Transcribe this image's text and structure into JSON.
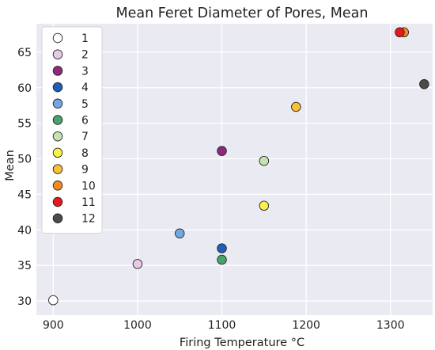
{
  "chart_data": {
    "type": "scatter",
    "title": "Mean Feret Diameter of Pores, Mean",
    "xlabel": "Firing Temperature °C",
    "ylabel": "Mean",
    "xlim": [
      880,
      1350
    ],
    "ylim": [
      28,
      69
    ],
    "xticks": [
      "900",
      "1000",
      "1100",
      "1200",
      "1300"
    ],
    "yticks": [
      "30",
      "35",
      "40",
      "45",
      "50",
      "55",
      "60",
      "65"
    ],
    "xtick_values": [
      900,
      1000,
      1100,
      1200,
      1300
    ],
    "ytick_values": [
      30,
      35,
      40,
      45,
      50,
      55,
      60,
      65
    ],
    "grid": true,
    "legend_position": "top-left",
    "series": [
      {
        "name": "1",
        "color": "#ffffff",
        "x": 900,
        "y": 30.1
      },
      {
        "name": "2",
        "color": "#e8c9e6",
        "x": 1000,
        "y": 35.2
      },
      {
        "name": "3",
        "color": "#8e2a7d",
        "x": 1100,
        "y": 51.1
      },
      {
        "name": "4",
        "color": "#1f5fb8",
        "x": 1100,
        "y": 37.4
      },
      {
        "name": "5",
        "color": "#74a7e0",
        "x": 1050,
        "y": 39.5
      },
      {
        "name": "6",
        "color": "#45a36b",
        "x": 1100,
        "y": 35.8
      },
      {
        "name": "7",
        "color": "#c4e3b1",
        "x": 1150,
        "y": 49.7
      },
      {
        "name": "8",
        "color": "#f7f24c",
        "x": 1150,
        "y": 43.4
      },
      {
        "name": "9",
        "color": "#f6c037",
        "x": 1188,
        "y": 57.3
      },
      {
        "name": "10",
        "color": "#f78a1d",
        "x": 1316,
        "y": 67.8
      },
      {
        "name": "11",
        "color": "#e41a1c",
        "x": 1311,
        "y": 67.8
      },
      {
        "name": "12",
        "color": "#4b4b4b",
        "x": 1340,
        "y": 60.5
      }
    ]
  }
}
